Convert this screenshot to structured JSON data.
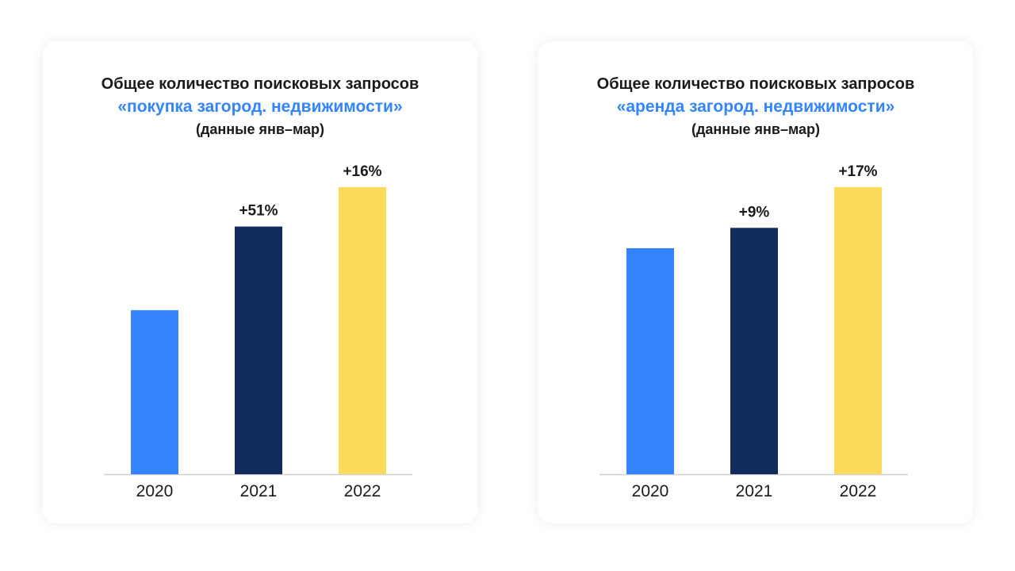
{
  "colors": {
    "bar_2020": "#3485FD",
    "bar_2021": "#112B5C",
    "bar_2022": "#FEDA5C",
    "subtitle_accent": "#3485FD",
    "text": "#1a1a1a",
    "axis": "#cfcfcf"
  },
  "chart_data": [
    {
      "type": "bar",
      "title": "Общее количество поисковых запросов",
      "subtitle": "«покупка загород. недвижимости»",
      "note": "(данные янв–мар)",
      "categories": [
        "2020",
        "2021",
        "2022"
      ],
      "values": [
        1.0,
        1.51,
        1.75
      ],
      "data_labels": [
        "",
        "+51%",
        "+16%"
      ],
      "ylim": [
        0,
        1.75
      ],
      "grid": false
    },
    {
      "type": "bar",
      "title": "Общее количество поисковых запросов",
      "subtitle": "«аренда загород. недвижимости»",
      "note": "(данные янв–мар)",
      "categories": [
        "2020",
        "2021",
        "2022"
      ],
      "values": [
        1.0,
        1.09,
        1.27
      ],
      "data_labels": [
        "",
        "+9%",
        "+17%"
      ],
      "ylim": [
        0,
        1.27
      ],
      "grid": false
    }
  ]
}
